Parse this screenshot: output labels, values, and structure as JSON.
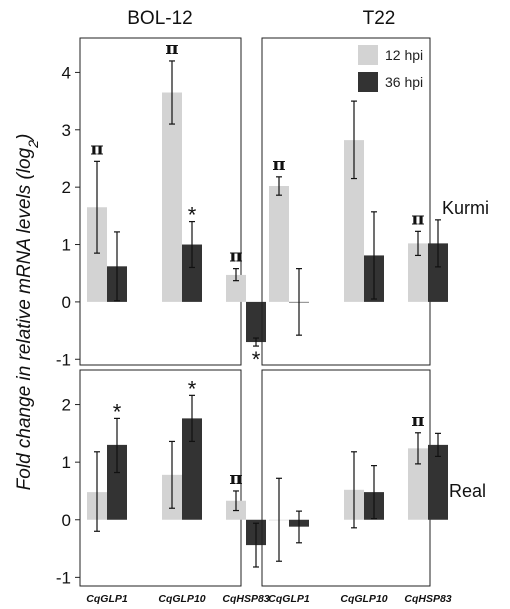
{
  "chart_data": {
    "type": "bar",
    "ylabel": "Fold change in relative mRNA levels (log2)",
    "columns": [
      "BOL-12",
      "T22"
    ],
    "rows": [
      "Kurmi",
      "Real"
    ],
    "categories": [
      "CqGLP1",
      "CqGLP10",
      "CqHSP83"
    ],
    "series_names": [
      "12 hpi",
      "36 hpi"
    ],
    "colors": {
      "12 hpi": "#d3d3d3",
      "36 hpi": "#333333"
    },
    "legend_position": "top-right",
    "panels": [
      {
        "column": "BOL-12",
        "row": "Kurmi",
        "ylim": [
          -1.1,
          4.6
        ],
        "yticks": [
          -1,
          0,
          1,
          2,
          3,
          4
        ],
        "series": [
          {
            "name": "12 hpi",
            "values": [
              1.65,
              3.65,
              0.47
            ],
            "err_low": [
              0.85,
              3.1,
              0.37
            ],
            "err_high": [
              2.45,
              4.2,
              0.58
            ]
          },
          {
            "name": "36 hpi",
            "values": [
              0.62,
              1.0,
              -0.7
            ],
            "err_low": [
              0.02,
              0.6,
              -0.77
            ],
            "err_high": [
              1.22,
              1.4,
              -0.63
            ]
          }
        ],
        "markers": [
          {
            "symbol": "π",
            "series": "12 hpi",
            "category": "CqGLP1",
            "place": "above"
          },
          {
            "symbol": "π",
            "series": "12 hpi",
            "category": "CqGLP10",
            "place": "above"
          },
          {
            "symbol": "*",
            "series": "36 hpi",
            "category": "CqGLP10",
            "place": "above"
          },
          {
            "symbol": "π",
            "series": "12 hpi",
            "category": "CqHSP83",
            "place": "above"
          },
          {
            "symbol": "*",
            "series": "36 hpi",
            "category": "CqHSP83",
            "place": "below"
          }
        ]
      },
      {
        "column": "T22",
        "row": "Kurmi",
        "ylim": [
          -1.1,
          4.6
        ],
        "yticks": [
          -1,
          0,
          1,
          2,
          3,
          4
        ],
        "series": [
          {
            "name": "12 hpi",
            "values": [
              2.02,
              2.82,
              1.02
            ],
            "err_low": [
              1.86,
              2.15,
              0.81
            ],
            "err_high": [
              2.18,
              3.5,
              1.23
            ]
          },
          {
            "name": "36 hpi",
            "values": [
              0.0,
              0.81,
              1.02
            ],
            "err_low": [
              -0.58,
              0.05,
              0.61
            ],
            "err_high": [
              0.58,
              1.57,
              1.43
            ]
          }
        ],
        "markers": [
          {
            "symbol": "π",
            "series": "12 hpi",
            "category": "CqGLP1",
            "place": "above"
          },
          {
            "symbol": "π",
            "series": "12 hpi",
            "category": "CqHSP83",
            "place": "above"
          }
        ]
      },
      {
        "column": "BOL-12",
        "row": "Real",
        "ylim": [
          -1.15,
          2.6
        ],
        "yticks": [
          -1,
          0,
          1,
          2
        ],
        "series": [
          {
            "name": "12 hpi",
            "values": [
              0.48,
              0.78,
              0.33
            ],
            "err_low": [
              -0.2,
              0.2,
              0.16
            ],
            "err_high": [
              1.18,
              1.36,
              0.5
            ]
          },
          {
            "name": "36 hpi",
            "values": [
              1.3,
              1.76,
              -0.44
            ],
            "err_low": [
              0.82,
              1.36,
              -0.82
            ],
            "err_high": [
              1.76,
              2.16,
              -0.06
            ]
          }
        ],
        "markers": [
          {
            "symbol": "*",
            "series": "36 hpi",
            "category": "CqGLP1",
            "place": "above"
          },
          {
            "symbol": "*",
            "series": "36 hpi",
            "category": "CqGLP10",
            "place": "above"
          },
          {
            "symbol": "π",
            "series": "12 hpi",
            "category": "CqHSP83",
            "place": "above"
          }
        ]
      },
      {
        "column": "T22",
        "row": "Real",
        "ylim": [
          -1.15,
          2.6
        ],
        "yticks": [
          -1,
          0,
          1,
          2
        ],
        "series": [
          {
            "name": "12 hpi",
            "values": [
              0.0,
              0.52,
              1.24
            ],
            "err_low": [
              -0.72,
              -0.14,
              0.97
            ],
            "err_high": [
              0.72,
              1.18,
              1.51
            ]
          },
          {
            "name": "36 hpi",
            "values": [
              -0.12,
              0.48,
              1.3
            ],
            "err_low": [
              -0.4,
              0.02,
              1.1
            ],
            "err_high": [
              0.15,
              0.94,
              1.5
            ]
          }
        ],
        "markers": [
          {
            "symbol": "π",
            "series": "12 hpi",
            "category": "CqHSP83",
            "place": "above"
          }
        ]
      }
    ]
  }
}
